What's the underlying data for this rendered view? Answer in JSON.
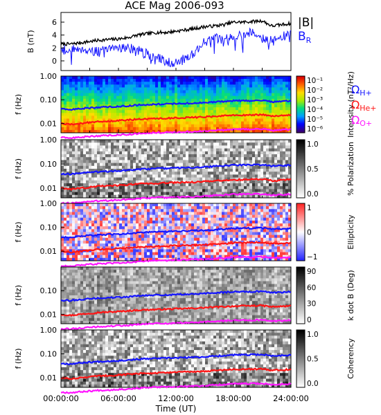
{
  "chart_data": [
    {
      "type": "line",
      "title": "ACE Mag 2006-093",
      "ylabel": "B (nT)",
      "ylim": [
        -1.5,
        7.5
      ],
      "yticks": [
        "6",
        "4",
        "2",
        "0"
      ],
      "series": [
        {
          "name": "|B|",
          "color": "#000000",
          "x": [
            0,
            1,
            2,
            3,
            4,
            5,
            6,
            7,
            8,
            9,
            10,
            11,
            12,
            13,
            14,
            15,
            16,
            17,
            18,
            19,
            20,
            21,
            22,
            23,
            24
          ],
          "values": [
            2.6,
            2.6,
            2.8,
            3.0,
            3.2,
            3.3,
            3.4,
            3.6,
            4.0,
            4.2,
            4.4,
            4.4,
            4.6,
            4.8,
            5.0,
            5.3,
            5.4,
            5.6,
            6.0,
            6.0,
            6.1,
            6.2,
            5.4,
            5.6,
            5.8
          ]
        },
        {
          "name": "B_R",
          "color": "#1414ff",
          "x": [
            0,
            1,
            2,
            3,
            4,
            5,
            6,
            7,
            8,
            9,
            10,
            11,
            12,
            13,
            14,
            15,
            16,
            17,
            18,
            19,
            20,
            21,
            22,
            23,
            24
          ],
          "values": [
            1.8,
            1.6,
            2.0,
            1.6,
            1.4,
            1.6,
            2.2,
            2.0,
            1.6,
            1.0,
            0.4,
            0.0,
            -0.4,
            0.4,
            1.4,
            3.0,
            3.6,
            3.0,
            4.0,
            4.0,
            4.6,
            3.6,
            3.0,
            3.6,
            4.2
          ]
        }
      ],
      "legend": [
        {
          "text": "|B|",
          "color": "#000000"
        },
        {
          "text": "B",
          "sub": "R",
          "color": "#1414ff"
        }
      ]
    },
    {
      "type": "heatmap",
      "ylabel": "f (Hz)",
      "yscale": "log",
      "ylim": [
        0.004,
        1.0
      ],
      "yticks": [
        "1.00",
        "0.10",
        "0.01"
      ],
      "colorbar": {
        "label": "Intensity (nT²/Hz)",
        "ticks": [
          "10⁻¹",
          "10⁻²",
          "10⁻³",
          "10⁻⁴",
          "10⁻⁵",
          "10⁻⁶"
        ],
        "palette": "rainbow"
      },
      "lines": [
        "H+",
        "He+",
        "O+"
      ],
      "side_legend": [
        {
          "text": "Ω",
          "sub": "H+",
          "color": "#1414ff"
        },
        {
          "text": "Ω",
          "sub": "He+",
          "color": "#ff1414"
        },
        {
          "text": "Ω",
          "sub": "O+",
          "color": "#ff14ff"
        }
      ]
    },
    {
      "type": "heatmap",
      "ylabel": "f (Hz)",
      "yscale": "log",
      "yticks": [
        "1.00",
        "0.10",
        "0.01"
      ],
      "colorbar": {
        "label": "% Polarization",
        "ticks": [
          "1.0",
          "0.5",
          "0.0"
        ],
        "palette": "gray"
      },
      "lines": [
        "H+",
        "He+",
        "O+"
      ]
    },
    {
      "type": "heatmap",
      "ylabel": "f (Hz)",
      "yscale": "log",
      "yticks": [
        "1.00",
        "0.10",
        "0.01"
      ],
      "colorbar": {
        "label": "Ellipticity",
        "ticks": [
          "1",
          "0",
          "−1"
        ],
        "palette": "bwr"
      },
      "lines": [
        "H+",
        "He+",
        "O+"
      ]
    },
    {
      "type": "heatmap",
      "ylabel": "f (Hz)",
      "yscale": "log",
      "yticks": [
        "0.10",
        "0.01"
      ],
      "colorbar": {
        "label": "k dot B (Deg)",
        "ticks": [
          "90",
          "60",
          "30",
          "0"
        ],
        "palette": "gray"
      },
      "lines": [
        "H+",
        "He+",
        "O+"
      ]
    },
    {
      "type": "heatmap",
      "ylabel": "f (Hz)",
      "yscale": "log",
      "yticks": [
        "1.00",
        "0.10",
        "0.01"
      ],
      "colorbar": {
        "label": "Coherency",
        "ticks": [
          "1.0",
          "0.5",
          "0.0"
        ],
        "palette": "gray"
      },
      "lines": [
        "H+",
        "He+",
        "O+"
      ],
      "xlabel": "Time (UT)",
      "xticks": [
        "00:00:00",
        "06:00:00",
        "12:00:00",
        "18:00:00",
        "24:00:00"
      ]
    }
  ],
  "cyclotron_lines": {
    "x_hours": [
      0,
      1,
      2,
      3,
      4,
      5,
      6,
      7,
      8,
      9,
      10,
      11,
      12,
      13,
      14,
      15,
      16,
      17,
      18,
      19,
      20,
      21,
      22,
      23,
      24
    ],
    "H+": [
      0.04,
      0.038,
      0.042,
      0.045,
      0.048,
      0.05,
      0.052,
      0.055,
      0.06,
      0.062,
      0.065,
      0.066,
      0.068,
      0.07,
      0.072,
      0.075,
      0.08,
      0.085,
      0.09,
      0.09,
      0.092,
      0.094,
      0.082,
      0.086,
      0.09
    ],
    "He+": [
      0.01,
      0.009,
      0.01,
      0.011,
      0.012,
      0.0125,
      0.013,
      0.014,
      0.015,
      0.0155,
      0.016,
      0.0165,
      0.017,
      0.0175,
      0.018,
      0.019,
      0.02,
      0.021,
      0.022,
      0.0225,
      0.023,
      0.0235,
      0.0205,
      0.0215,
      0.0225
    ],
    "O+": [
      0.0025,
      0.0024,
      0.0026,
      0.0028,
      0.003,
      0.0031,
      0.0033,
      0.0034,
      0.0037,
      0.0039,
      0.0041,
      0.0041,
      0.0042,
      0.0044,
      0.0045,
      0.0047,
      0.005,
      0.0053,
      0.0056,
      0.0056,
      0.0057,
      0.0058,
      0.0051,
      0.0054,
      0.0056
    ],
    "colors": {
      "H+": "#1414ff",
      "He+": "#ff1414",
      "O+": "#ff14ff"
    }
  }
}
